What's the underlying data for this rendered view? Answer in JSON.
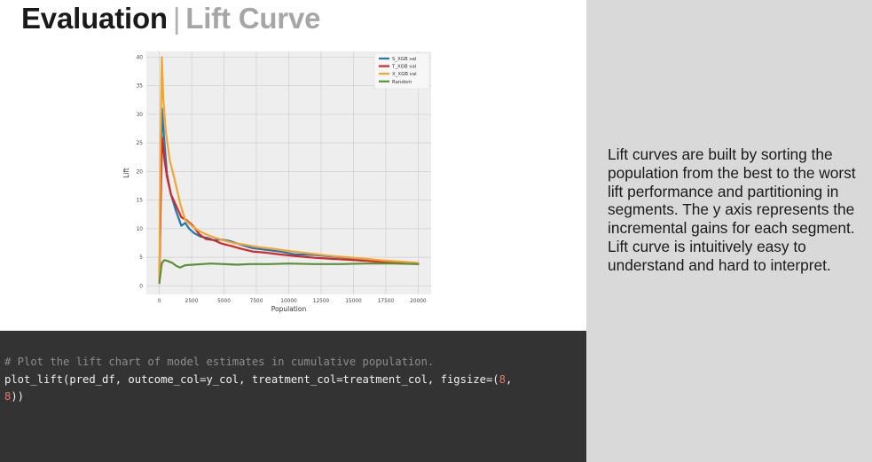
{
  "slide": {
    "title_main": "Evaluation",
    "title_separator": "|",
    "title_sub": "Lift Curve"
  },
  "description": {
    "paragraph_1": "Lift curves are built by sorting the population from the best to the worst lift performance and partitioning in segments. The y axis represents the incremental gains for each segment.",
    "paragraph_2": "Lift curve is intuitively easy to understand and hard to interpret."
  },
  "code": {
    "comment": "# Plot the lift chart of model estimates in cumulative population.",
    "line_2_prefix": "plot_lift(pred_df, outcome_col=y_col, treatment_col=treatment_col, figsize=(",
    "line_2_num": "8",
    "line_2_suffix": ",",
    "line_3_num": "8",
    "line_3_suffix": "))"
  },
  "chart_data": {
    "type": "line",
    "title": "",
    "xlabel": "Population",
    "ylabel": "Lift",
    "xlim": [
      -1000,
      21000
    ],
    "ylim": [
      -1.5,
      41
    ],
    "xticks": [
      0,
      2500,
      5000,
      7500,
      10000,
      12500,
      15000,
      17500,
      20000
    ],
    "yticks": [
      0,
      5,
      10,
      15,
      20,
      25,
      30,
      35,
      40
    ],
    "grid": true,
    "legend_position": "top-right",
    "series": [
      {
        "name": "S_XGB val",
        "color": "#1f77b4",
        "x": [
          0,
          200,
          400,
          600,
          900,
          1300,
          1700,
          2000,
          2300,
          2700,
          3200,
          3700,
          4200,
          4800,
          5500,
          6300,
          7200,
          8200,
          9300,
          10500,
          12000,
          13500,
          15000,
          16500,
          18000,
          19500,
          20000
        ],
        "y": [
          0.5,
          31,
          25,
          19.5,
          16,
          13,
          10.5,
          11,
          10,
          9.2,
          8.6,
          8.4,
          8,
          8.1,
          7.8,
          7.2,
          6.6,
          6.3,
          6,
          5.5,
          5.4,
          5.1,
          4.8,
          4.5,
          4.2,
          4,
          3.9
        ]
      },
      {
        "name": "T_XGB val",
        "color": "#d62728",
        "x": [
          0,
          200,
          400,
          600,
          900,
          1300,
          1700,
          2100,
          2600,
          3100,
          3600,
          4200,
          4800,
          5500,
          6300,
          7200,
          8200,
          9300,
          10500,
          12000,
          13500,
          15000,
          16500,
          18000,
          19500,
          20000
        ],
        "y": [
          0.5,
          26,
          22,
          19,
          16,
          14,
          12,
          11.5,
          10.5,
          9,
          8.2,
          8,
          7.4,
          7,
          6.5,
          6,
          5.8,
          5.5,
          5.2,
          4.9,
          4.7,
          4.5,
          4.3,
          4.1,
          3.9,
          3.8
        ]
      },
      {
        "name": "X_XGB val",
        "color": "#f0a630",
        "x": [
          0,
          100,
          200,
          300,
          500,
          800,
          1200,
          1600,
          2000,
          2500,
          3000,
          3600,
          4200,
          4900,
          5700,
          6600,
          7600,
          8700,
          10000,
          11500,
          13000,
          14500,
          16000,
          17500,
          19000,
          20000
        ],
        "y": [
          0.5,
          25,
          40,
          33,
          27,
          22,
          18.5,
          14.5,
          11.5,
          10.5,
          9.7,
          9,
          8.5,
          8,
          7.5,
          7.2,
          6.8,
          6.5,
          6.1,
          5.7,
          5.3,
          5,
          4.7,
          4.4,
          4.2,
          4
        ]
      },
      {
        "name": "Random",
        "color": "#5a8f3c",
        "x": [
          0,
          200,
          400,
          700,
          1000,
          1300,
          1600,
          2000,
          2600,
          3300,
          4000,
          5000,
          6000,
          7000,
          8500,
          10000,
          12000,
          14000,
          16000,
          18000,
          20000
        ],
        "y": [
          0.5,
          4,
          4.5,
          4.3,
          4,
          3.5,
          3.2,
          3.6,
          3.7,
          3.8,
          3.9,
          3.8,
          3.7,
          3.8,
          3.8,
          3.9,
          3.8,
          3.8,
          3.9,
          3.9,
          3.8
        ]
      }
    ]
  }
}
